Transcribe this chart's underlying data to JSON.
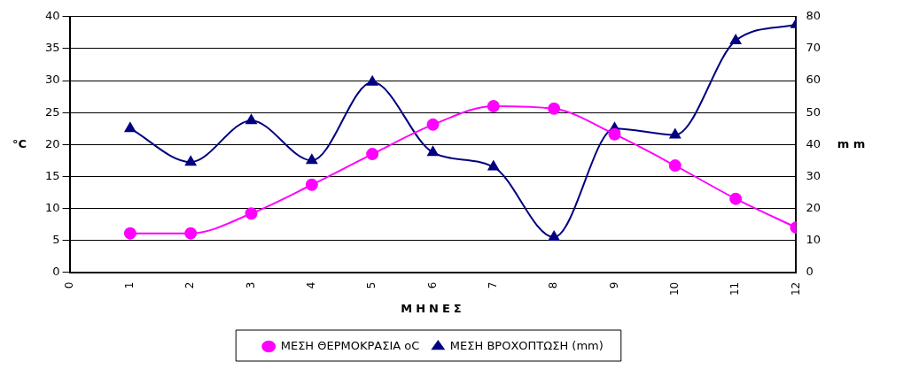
{
  "chart_data": {
    "type": "line",
    "xlabel": "ΜΗΝΕΣ",
    "ylabel": "°C",
    "y2label": "m m",
    "x": [
      1,
      2,
      3,
      4,
      5,
      6,
      7,
      8,
      9,
      10,
      11,
      12
    ],
    "xlim": [
      0,
      12
    ],
    "xticks": [
      0,
      1,
      2,
      3,
      4,
      5,
      6,
      7,
      8,
      9,
      10,
      11,
      12
    ],
    "ylim": [
      0,
      40
    ],
    "yticks": [
      0,
      5,
      10,
      15,
      20,
      25,
      30,
      35,
      40
    ],
    "y2lim": [
      0,
      80
    ],
    "y2ticks": [
      0,
      10,
      20,
      30,
      40,
      50,
      60,
      70,
      80
    ],
    "grid": "y",
    "legend": "bottom",
    "series": [
      {
        "name": "ΜΕΣΗ ΘΕΡΜΟΚΡΑΣΙΑ oC",
        "color": "#ff00ff",
        "marker": "circle",
        "values": [
          6.1,
          6.1,
          9.2,
          13.7,
          18.5,
          23.1,
          26,
          25.6,
          21.6,
          16.7,
          11.5,
          7
        ]
      },
      {
        "name": "ΜΕΣΗ ΒΡΟΧΟΠΤΩΣΗ (mm)",
        "color": "#000080",
        "marker": "triangle",
        "axis": "y2",
        "values": [
          45,
          34.5,
          47.5,
          35,
          59.5,
          37.5,
          33,
          11,
          45,
          43,
          72.5,
          77.5
        ]
      }
    ]
  }
}
